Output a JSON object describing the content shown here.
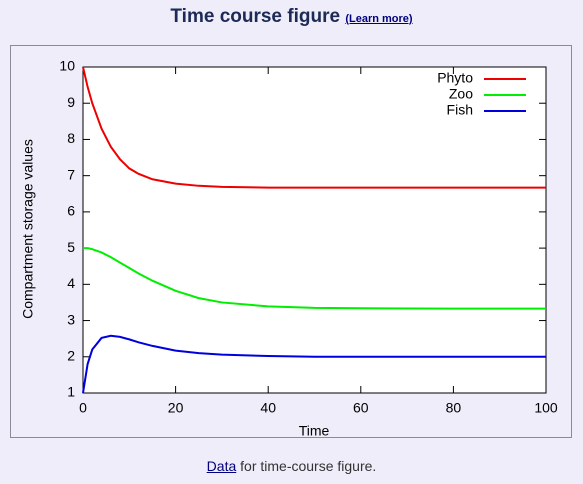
{
  "page": {
    "title": "Time course figure",
    "title_link": "(Learn more)",
    "footer_link": "Data",
    "footer_text": "for time-course figure."
  },
  "chart_data": {
    "type": "line",
    "x_label": "Time",
    "y_label": "Compartment storage values",
    "x": [
      0,
      1,
      2,
      4,
      6,
      8,
      10,
      12,
      15,
      20,
      25,
      30,
      40,
      50,
      60,
      80,
      100
    ],
    "series": [
      {
        "name": "Phyto",
        "color": "#ee0000",
        "values": [
          10,
          9.45,
          9.0,
          8.3,
          7.8,
          7.45,
          7.2,
          7.05,
          6.9,
          6.78,
          6.72,
          6.69,
          6.67,
          6.67,
          6.67,
          6.67,
          6.67
        ]
      },
      {
        "name": "Zoo",
        "color": "#00ee00",
        "values": [
          5,
          5.0,
          4.97,
          4.88,
          4.75,
          4.6,
          4.45,
          4.3,
          4.1,
          3.82,
          3.62,
          3.5,
          3.39,
          3.35,
          3.34,
          3.33,
          3.33
        ]
      },
      {
        "name": "Fish",
        "color": "#0000dd",
        "values": [
          1,
          1.8,
          2.2,
          2.52,
          2.58,
          2.55,
          2.48,
          2.4,
          2.3,
          2.17,
          2.1,
          2.06,
          2.02,
          2.0,
          2.0,
          2.0,
          2.0
        ]
      }
    ],
    "xlim": [
      0,
      100
    ],
    "xticks": [
      0,
      20,
      40,
      60,
      80,
      100
    ],
    "ylim": [
      1,
      10
    ],
    "yticks": [
      1,
      2,
      3,
      4,
      5,
      6,
      7,
      8,
      9,
      10
    ],
    "legend": "top-right",
    "grid": false
  }
}
